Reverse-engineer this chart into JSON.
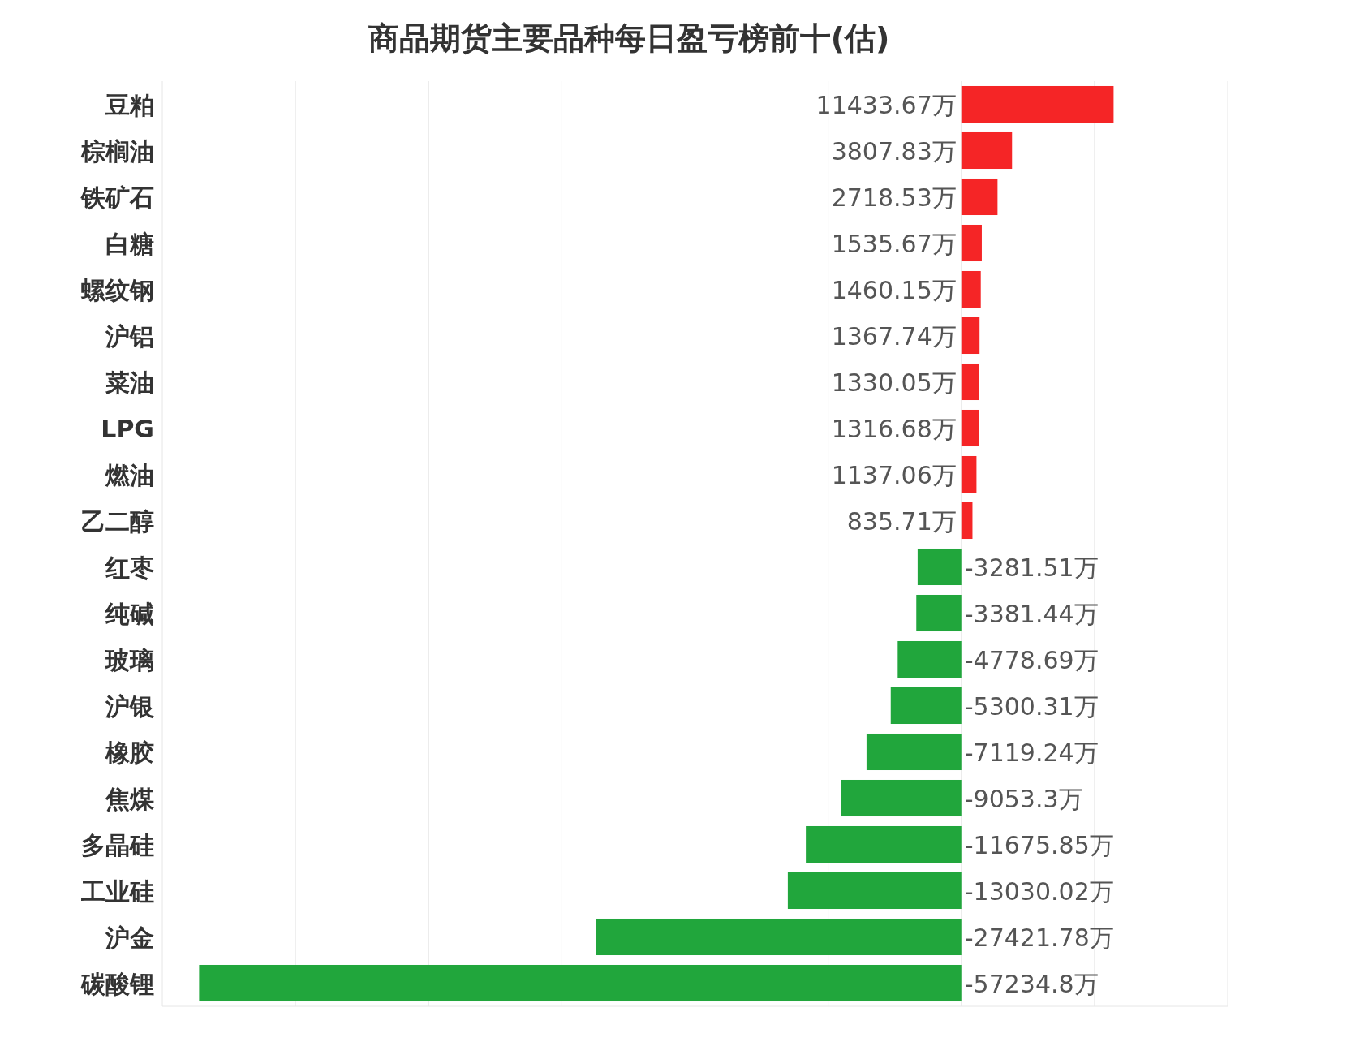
{
  "chart_data": {
    "type": "bar",
    "orientation": "horizontal",
    "title": "商品期货主要品种每日盈亏榜前十(估)",
    "categories": [
      "豆粕",
      "棕榈油",
      "铁矿石",
      "白糖",
      "螺纹钢",
      "沪铝",
      "菜油",
      "LPG",
      "燃油",
      "乙二醇",
      "红枣",
      "纯碱",
      "玻璃",
      "沪银",
      "橡胶",
      "焦煤",
      "多晶硅",
      "工业硅",
      "沪金",
      "碳酸锂"
    ],
    "values": [
      11433.67,
      3807.83,
      2718.53,
      1535.67,
      1460.15,
      1367.74,
      1330.05,
      1316.68,
      1137.06,
      835.71,
      -3281.51,
      -3381.44,
      -4778.69,
      -5300.31,
      -7119.24,
      -9053.3,
      -11675.85,
      -13030.02,
      -27421.78,
      -57234.8
    ],
    "value_labels": [
      "11433.67万",
      "3807.83万",
      "2718.53万",
      "1535.67万",
      "1460.15万",
      "1367.74万",
      "1330.05万",
      "1316.68万",
      "1137.06万",
      "835.71万",
      "-3281.51万",
      "-3381.44万",
      "-4778.69万",
      "-5300.31万",
      "-7119.24万",
      "-9053.3万",
      "-11675.85万",
      "-13030.02万",
      "-27421.78万",
      "-57234.8万"
    ],
    "colors": [
      "#f52526",
      "#f52526",
      "#f52526",
      "#f52526",
      "#f52526",
      "#f52526",
      "#f52526",
      "#f52526",
      "#f52526",
      "#f52526",
      "#21a63c",
      "#21a63c",
      "#21a63c",
      "#21a63c",
      "#21a63c",
      "#21a63c",
      "#21a63c",
      "#21a63c",
      "#21a63c",
      "#21a63c"
    ],
    "xlim": [
      -60000,
      20000
    ],
    "xticks": [
      {
        "value": -60000,
        "label": null
      },
      {
        "value": -50000,
        "label": null
      },
      {
        "value": -40000,
        "label": null
      },
      {
        "value": -30000,
        "label": null
      },
      {
        "value": -20000,
        "label": null
      },
      {
        "value": -10000,
        "label": null
      },
      {
        "value": 0,
        "label": null
      },
      {
        "value": 10000,
        "label": null
      },
      {
        "value": 20000,
        "label": null
      }
    ],
    "grid": "x",
    "tick_labels": "y"
  }
}
